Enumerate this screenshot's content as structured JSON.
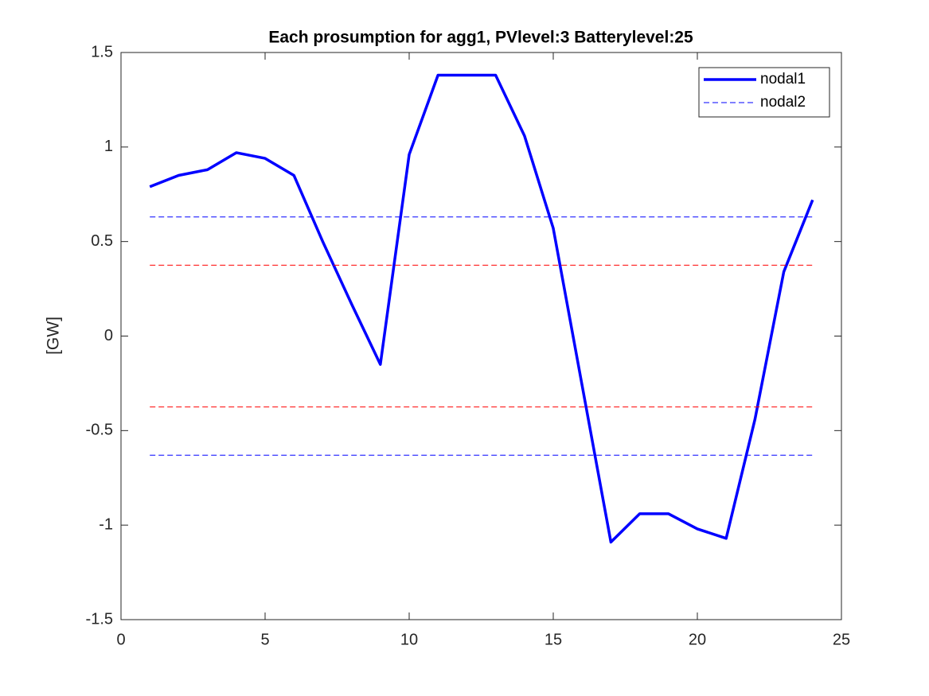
{
  "chart_data": {
    "type": "line",
    "title": "Each prosumption for agg1, PVlevel:3 Batterylevel:25",
    "y_label": "[GW]",
    "xlim": [
      0,
      25
    ],
    "xticks": [
      0,
      5,
      10,
      15,
      20,
      25
    ],
    "ylim": [
      -1.5,
      1.5
    ],
    "yticks": [
      -1.5,
      -1,
      -0.5,
      0,
      0.5,
      1,
      1.5
    ],
    "legend": "upper right",
    "series": [
      {
        "name": "nodal1",
        "color": "#0000ff",
        "dashed": false,
        "x": [
          1,
          2,
          3,
          4,
          5,
          6,
          7,
          8,
          9,
          10,
          11,
          12,
          13,
          14,
          15,
          16,
          17,
          18,
          19,
          20,
          21,
          22,
          23,
          24
        ],
        "values": [
          0.79,
          0.85,
          0.88,
          0.97,
          0.94,
          0.85,
          0.5,
          0.17,
          -0.15,
          0.96,
          1.38,
          1.38,
          1.38,
          1.06,
          0.57,
          -0.26,
          -1.09,
          -0.94,
          -0.94,
          -1.02,
          -1.07,
          -0.44,
          0.34,
          0.72
        ]
      },
      {
        "name": "nodal2",
        "color": "#0000ff",
        "dashed": true,
        "x": [
          1,
          24
        ],
        "values": [
          0.63,
          0.63
        ]
      },
      {
        "color": "#0000ff",
        "dashed": true,
        "x": [
          1,
          24
        ],
        "values": [
          -0.63,
          -0.63
        ]
      },
      {
        "color": "#ff0000",
        "dashed": true,
        "x": [
          1,
          24
        ],
        "values": [
          0.375,
          0.375
        ]
      },
      {
        "color": "#ff0000",
        "dashed": true,
        "x": [
          1,
          24
        ],
        "values": [
          -0.375,
          -0.375
        ]
      }
    ]
  }
}
